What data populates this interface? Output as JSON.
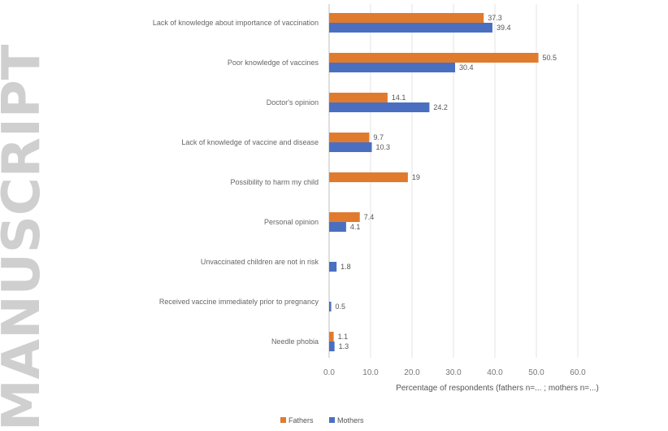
{
  "chart_data": {
    "type": "bar",
    "orientation": "horizontal",
    "categories": [
      "Lack of knowledge about importance of vaccination",
      "Poor knowledge of vaccines",
      "Doctor's opinion",
      "Lack of knowledge of vaccine and disease",
      "Possibility to harm my child",
      "Personal opinion",
      "Unvaccinated children are not in risk",
      "Received vaccine immediately prior to pregnancy",
      "Needle phobia"
    ],
    "series": [
      {
        "name": "Fathers",
        "color": "#e07b2e",
        "values": [
          37.3,
          50.5,
          14.1,
          9.7,
          19,
          7.4,
          null,
          null,
          1.1
        ]
      },
      {
        "name": "Mothers",
        "color": "#4a6fc1",
        "values": [
          39.4,
          30.4,
          24.2,
          10.3,
          null,
          4.1,
          1.8,
          0.5,
          1.3
        ]
      }
    ],
    "value_labels": {
      "Fathers": [
        "37.3",
        "50.5",
        "14.1",
        "9.7",
        "19",
        "7.4",
        "",
        "",
        "1.1"
      ],
      "Mothers": [
        "39.4",
        "30.4",
        "24.2",
        "10.3",
        "",
        "4.1",
        "1.8",
        "0.5",
        "1.3"
      ]
    },
    "xlabel": "Percentage of respondents (fathers n=... ; mothers n=...)",
    "xlim": [
      0,
      60
    ],
    "xticks": [
      0,
      10,
      20,
      30,
      40,
      50,
      60
    ],
    "xtick_labels": [
      "0.0",
      "10.0",
      "20.0",
      "30.0",
      "40.0",
      "50.0",
      "60.0"
    ],
    "grid": true,
    "legend_position": "bottom"
  },
  "watermark": "MANUSCRIPT"
}
